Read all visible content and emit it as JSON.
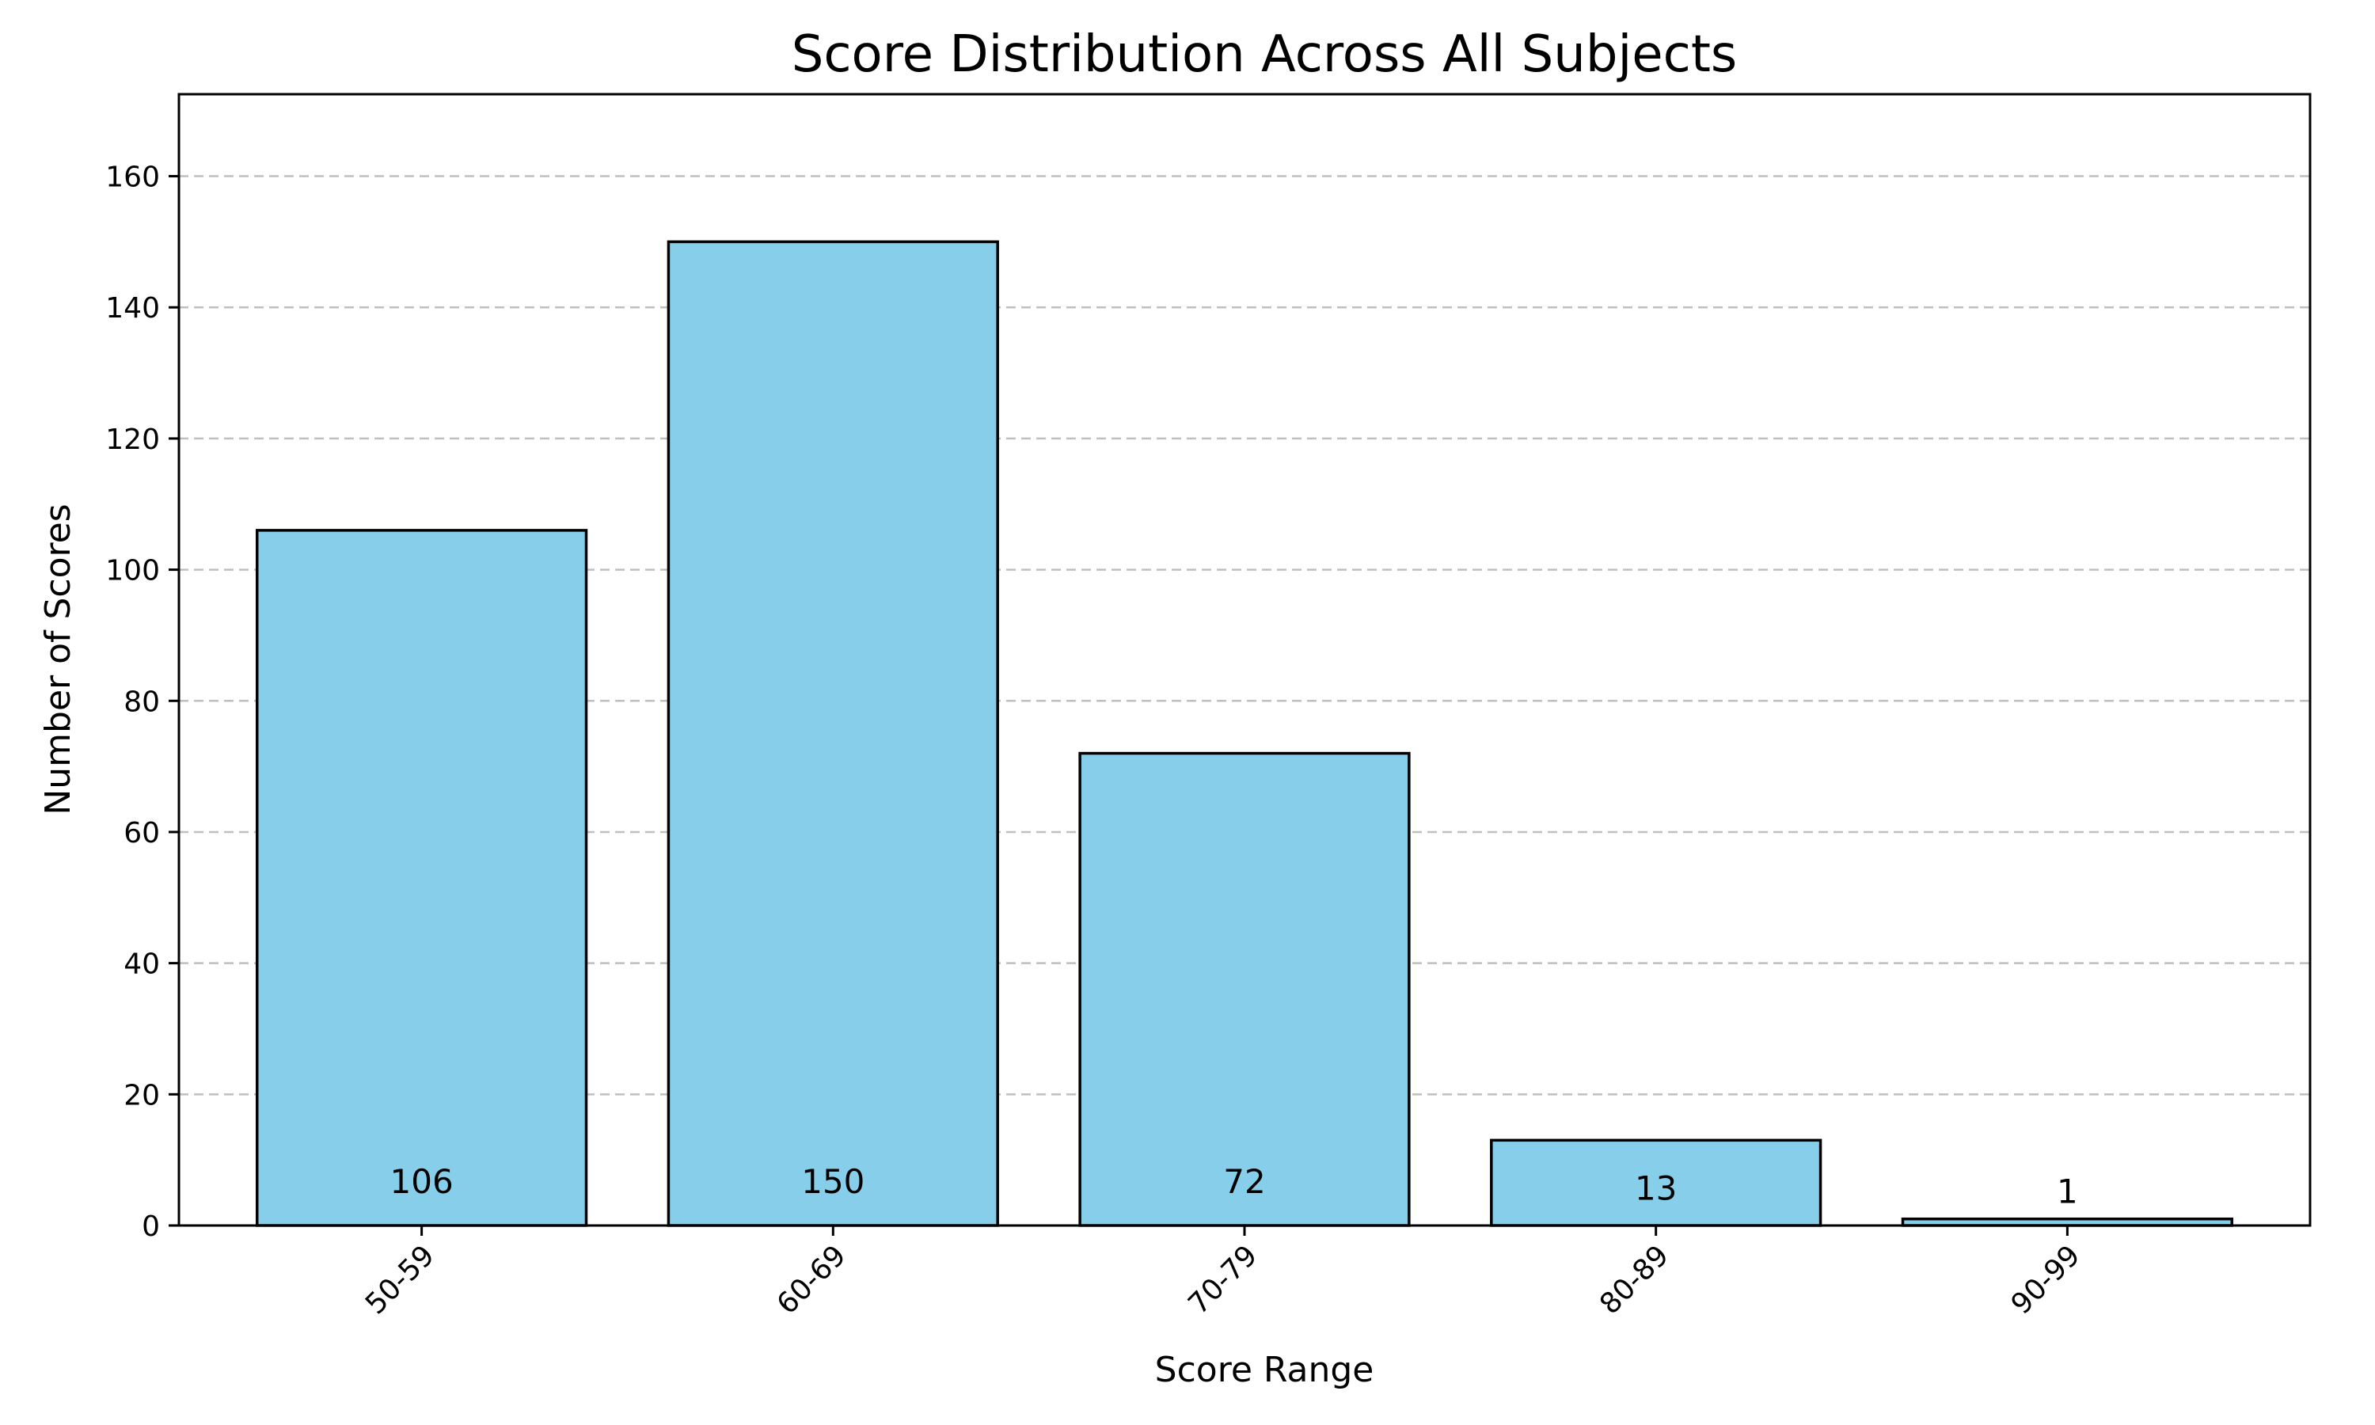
{
  "chart_data": {
    "type": "bar",
    "title": "Score Distribution Across All Subjects",
    "xlabel": "Score Range",
    "ylabel": "Number of Scores",
    "categories": [
      "50-59",
      "60-69",
      "70-79",
      "80-89",
      "90-99"
    ],
    "values": [
      106,
      150,
      72,
      13,
      1
    ],
    "ylim": [
      0,
      172.5
    ],
    "yticks": [
      0,
      20,
      40,
      60,
      80,
      100,
      120,
      140,
      160
    ],
    "bar_color": "#87CEEB",
    "edge_color": "#000000",
    "grid": "y-dashed",
    "xtick_rotation": 45
  }
}
